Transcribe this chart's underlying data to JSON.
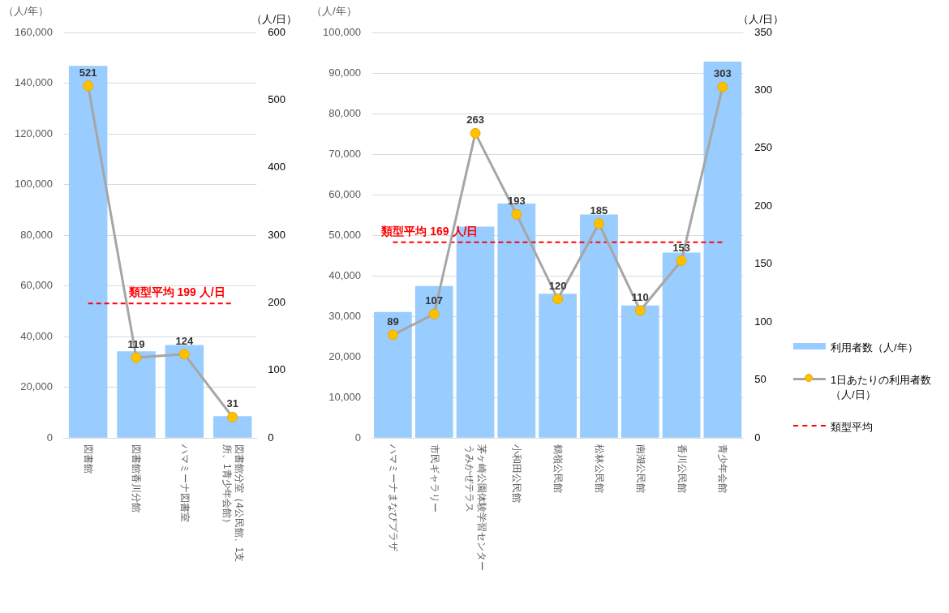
{
  "chart_data": [
    {
      "type": "bar",
      "ylabel": "（人/年）",
      "y2label": "（人/日）",
      "categories": [
        "図書館",
        "図書館香川分館",
        "ハマミーナ図書室",
        "図書館分室（4公民館、1支所、1青少年会館）"
      ],
      "series": [
        {
          "type": "bar",
          "color": "#99ccff",
          "values": [
            146800,
            34200,
            36700,
            8600
          ]
        },
        {
          "type": "line",
          "axis": "y2",
          "color": "#a6a6a6",
          "marker": "circle",
          "values": [
            521,
            119,
            124,
            31
          ],
          "value_labels": [
            "521",
            "119",
            "124",
            "31"
          ]
        },
        {
          "type": "line",
          "axis": "y2",
          "color": "#ff0000",
          "line_style": "dashed",
          "marker": "none",
          "values": [
            199,
            199,
            199,
            199
          ]
        }
      ],
      "ylim": [
        0,
        160000
      ],
      "yticks": [
        {
          "value": 0,
          "label": "0"
        },
        {
          "value": 20000,
          "label": "20,000"
        },
        {
          "value": 40000,
          "label": "40,000"
        },
        {
          "value": 60000,
          "label": "60,000"
        },
        {
          "value": 80000,
          "label": "80,000"
        },
        {
          "value": 100000,
          "label": "100,000"
        },
        {
          "value": 120000,
          "label": "120,000"
        },
        {
          "value": 140000,
          "label": "140,000"
        },
        {
          "value": 160000,
          "label": "160,000"
        }
      ],
      "y2lim": [
        0,
        600
      ],
      "y2ticks": [
        0,
        100,
        200,
        300,
        400,
        500,
        600
      ],
      "annotations": [
        "類型平均 199 人/日"
      ],
      "grid": "y",
      "legend": false
    },
    {
      "type": "bar",
      "ylabel": "（人/年）",
      "y2label": "（人/日）",
      "categories": [
        "ハマミーナまなびプラザ",
        "市民ギャラリー",
        "茅ヶ崎公園体験学習センターうみかぜテラス",
        "小和田公民館",
        "鶴嶺公民館",
        "松林公民館",
        "南湖公民館",
        "香川公民館",
        "青少年会館"
      ],
      "series": [
        {
          "name": "利用者数（人/年）",
          "type": "bar",
          "color": "#99ccff",
          "values": [
            31100,
            37500,
            52100,
            57800,
            35600,
            55100,
            32700,
            45700,
            92800
          ]
        },
        {
          "name": "1日あたりの利用者数（人/日）",
          "type": "line",
          "axis": "y2",
          "color": "#a6a6a6",
          "marker": "circle",
          "values": [
            89,
            107,
            263,
            193,
            120,
            185,
            110,
            153,
            303
          ],
          "value_labels": [
            "89",
            "107",
            "263",
            "193",
            "120",
            "185",
            "110",
            "153",
            "303"
          ]
        },
        {
          "name": "類型平均",
          "type": "line",
          "axis": "y2",
          "color": "#ff0000",
          "line_style": "dashed",
          "marker": "none",
          "values": [
            169,
            169,
            169,
            169,
            169,
            169,
            169,
            169,
            169
          ]
        }
      ],
      "ylim": [
        0,
        100000
      ],
      "yticks": [
        {
          "value": 0,
          "label": "0"
        },
        {
          "value": 10000,
          "label": "10,000"
        },
        {
          "value": 20000,
          "label": "20,000"
        },
        {
          "value": 30000,
          "label": "30,000"
        },
        {
          "value": 40000,
          "label": "40,000"
        },
        {
          "value": 50000,
          "label": "50,000"
        },
        {
          "value": 60000,
          "label": "60,000"
        },
        {
          "value": 70000,
          "label": "70,000"
        },
        {
          "value": 80000,
          "label": "80,000"
        },
        {
          "value": 90000,
          "label": "90,000"
        },
        {
          "value": 100000,
          "label": "100,000"
        }
      ],
      "y2lim": [
        0,
        350
      ],
      "y2ticks": [
        0,
        50,
        100,
        150,
        200,
        250,
        300,
        350
      ],
      "annotations": [
        "類型平均 169 人/日"
      ],
      "grid": "y",
      "legend": "right"
    }
  ]
}
